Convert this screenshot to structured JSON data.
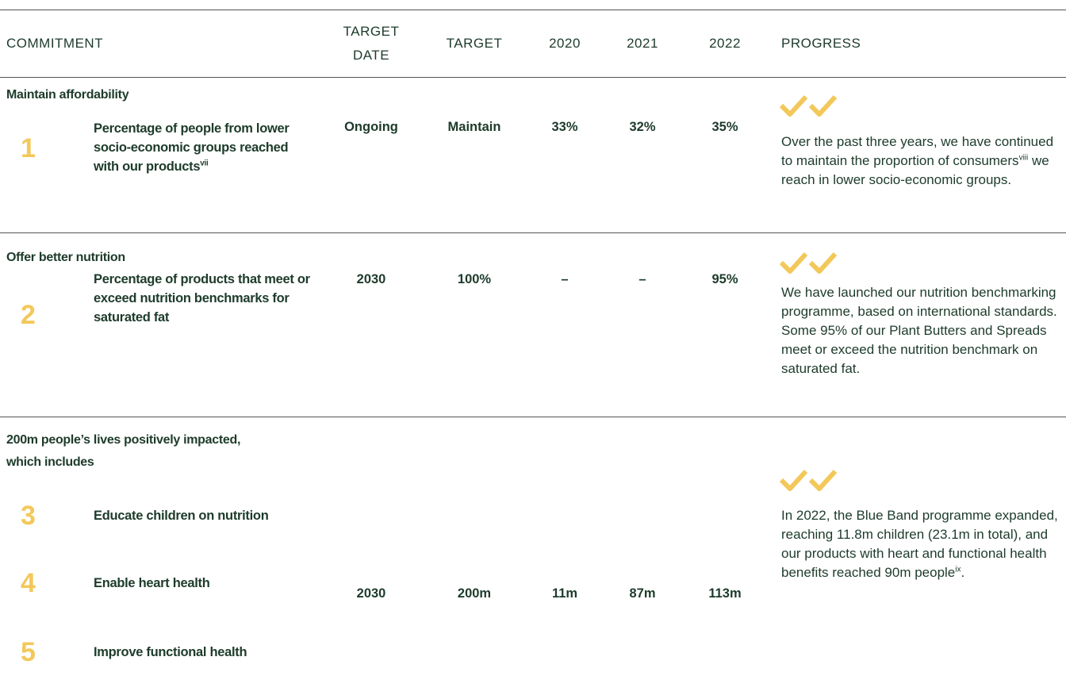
{
  "header": {
    "columns": [
      "COMMITMENT",
      "TARGET DATE",
      "TARGET",
      "2020",
      "2021",
      "2022",
      "PROGRESS"
    ]
  },
  "sections": [
    {
      "title": "Maintain affordability",
      "items": [
        {
          "number": "1",
          "label": "Percentage of people from lower socio-economic groups reached with our products",
          "label_sup": "vii"
        }
      ],
      "target_date": "Ongoing",
      "target": "Maintain",
      "values": [
        "33%",
        "32%",
        "35%"
      ],
      "progress": {
        "text": "Over the past three years, we have continued to maintain the proportion of consumers",
        "sup": "viii",
        "tail": " we reach in lower socio-economic groups."
      }
    },
    {
      "title": "Offer better nutrition",
      "items": [
        {
          "number": "2",
          "label": "Percentage of products that meet or exceed nutrition benchmarks for saturated fat"
        }
      ],
      "target_date": "2030",
      "target": "100%",
      "values": [
        "–",
        "–",
        "95%"
      ],
      "progress": {
        "text": "We have launched our nutrition benchmarking programme, based on international standards. Some 95% of our Plant Butters and Spreads meet or exceed the nutrition benchmark on saturated fat."
      }
    },
    {
      "title": "200m people’s lives positively impacted, which includes",
      "items": [
        {
          "number": "3",
          "label": "Educate children on nutrition"
        },
        {
          "number": "4",
          "label": "Enable heart health"
        },
        {
          "number": "5",
          "label": "Improve functional health"
        }
      ],
      "target_date": "2030",
      "target": "200m",
      "values": [
        "11m",
        "87m",
        "113m"
      ],
      "progress": {
        "text": "In 2022, the Blue Band programme expanded, reaching 11.8m children (23.1m in total), and our products with heart and functional health benefits reached 90m people",
        "sup": "ix",
        "tail": "."
      }
    }
  ]
}
